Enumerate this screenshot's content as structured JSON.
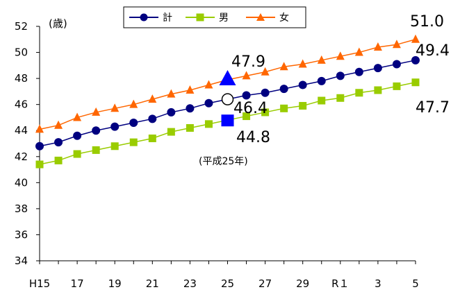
{
  "chart_data": {
    "type": "line",
    "unit_label": "(歳)",
    "x_labels": [
      "H15",
      "17",
      "19",
      "21",
      "23",
      "25",
      "27",
      "29",
      "R１",
      "3",
      "5"
    ],
    "y_ticks": [
      34,
      36,
      38,
      40,
      42,
      44,
      46,
      48,
      50,
      52
    ],
    "ylim": [
      34,
      52
    ],
    "grid": false,
    "legend_position": "top-center",
    "series": [
      {
        "name": "計",
        "color": "#000080",
        "marker": "circle",
        "values": [
          42.8,
          43.1,
          43.6,
          44.0,
          44.3,
          44.6,
          44.9,
          45.4,
          45.7,
          46.1,
          46.4,
          46.7,
          46.9,
          47.2,
          47.5,
          47.8,
          48.2,
          48.5,
          48.8,
          49.1,
          49.4
        ]
      },
      {
        "name": "男",
        "color": "#99CC00",
        "marker": "square",
        "values": [
          41.4,
          41.7,
          42.2,
          42.5,
          42.8,
          43.1,
          43.4,
          43.9,
          44.2,
          44.5,
          44.8,
          45.1,
          45.4,
          45.7,
          45.9,
          46.3,
          46.5,
          46.9,
          47.1,
          47.4,
          47.7
        ]
      },
      {
        "name": "女",
        "color": "#FF6600",
        "marker": "triangle",
        "values": [
          44.1,
          44.4,
          45.0,
          45.4,
          45.7,
          46.0,
          46.4,
          46.8,
          47.1,
          47.5,
          47.9,
          48.2,
          48.5,
          48.9,
          49.1,
          49.4,
          49.7,
          50.0,
          50.4,
          50.6,
          51.0
        ]
      }
    ],
    "annotations": {
      "h25_female": "47.9",
      "h25_total": "46.4",
      "h25_male": "44.8",
      "h25_note": "(平成25年)",
      "r5_female": "51.0",
      "r5_total": "49.4",
      "r5_male": "47.7"
    },
    "highlight_colors": {
      "female": "#0000FF",
      "male": "#0000FF",
      "total_fill": "#FFFFFF",
      "total_stroke": "#000000"
    }
  }
}
